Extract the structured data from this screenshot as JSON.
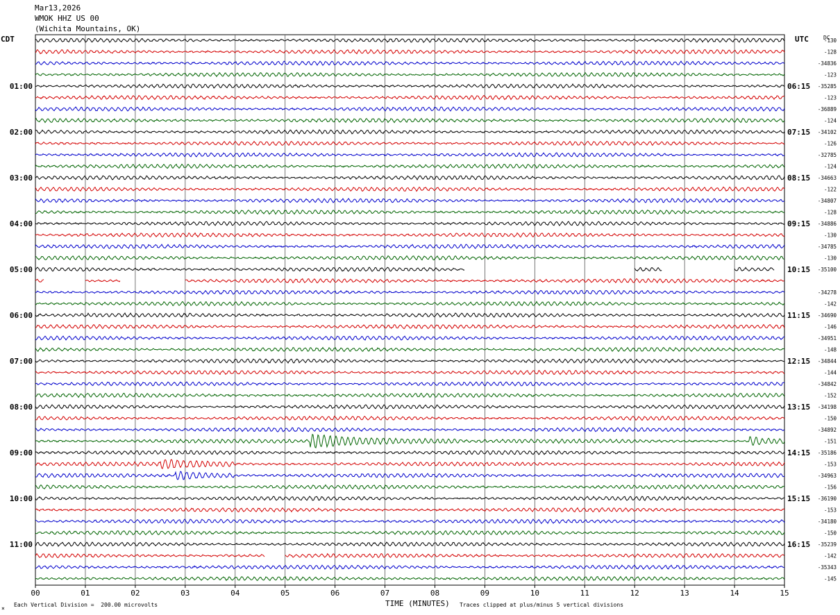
{
  "header": {
    "date": "Mar13,2026",
    "station": "WMOK HHZ US 00",
    "location": "(Wichita Mountains, OK)"
  },
  "tz": {
    "left": "CDT",
    "right": "UTC",
    "corner": "DC"
  },
  "footer": {
    "division": "Each Vertical Division =  200.00 microvolts",
    "xtitle": "TIME (MINUTES)",
    "clip_note": "Traces clipped at plus/minus 5 vertical divisions"
  },
  "colors": {
    "trace_cycle": [
      "#000000",
      "#d40000",
      "#0000cc",
      "#006400"
    ],
    "grid": "#000000"
  },
  "chart_data": {
    "type": "line",
    "subtype": "helicorder",
    "x_ticks": [
      "00",
      "01",
      "02",
      "03",
      "04",
      "05",
      "06",
      "07",
      "08",
      "09",
      "10",
      "11",
      "12",
      "13",
      "14",
      "15"
    ],
    "xlim": [
      0,
      15
    ],
    "row_minutes": 15,
    "row_count": 48,
    "hour_labels_left": [
      "01:00",
      "02:00",
      "03:00",
      "04:00",
      "05:00",
      "06:00",
      "07:00",
      "08:00",
      "09:00",
      "10:00",
      "11:00"
    ],
    "hour_labels_right": [
      "06:15",
      "07:15",
      "08:15",
      "09:15",
      "10:15",
      "11:15",
      "12:15",
      "13:15",
      "14:15",
      "15:15",
      "16:15"
    ],
    "first_labeled_row": 4,
    "dc_offsets": [
      "-130",
      "-128",
      "-34836",
      "-123",
      "-35285",
      "-123",
      "-36889",
      "-124",
      "-34102",
      "-126",
      "-32785",
      "-124",
      "-34663",
      "-122",
      "-34807",
      "-128",
      "-34886",
      "-130",
      "-34785",
      "-130",
      "-35100",
      "",
      "-34278",
      "-142",
      "-34690",
      "-146",
      "-34951",
      "-148",
      "-34844",
      "-144",
      "-34842",
      "-152",
      "-34198",
      "-150",
      "-34892",
      "-151",
      "-35186",
      "-153",
      "-34963",
      "-156",
      "-36190",
      "-153",
      "-34180",
      "-150",
      "-35239",
      "-142",
      "-35343",
      "-145"
    ],
    "gaps": [
      {
        "row": 20,
        "segments": [
          [
            0,
            8.6
          ],
          [
            12.0,
            12.55
          ],
          [
            14.0,
            14.8
          ]
        ]
      },
      {
        "row": 21,
        "segments": [
          [
            0.0,
            0.18
          ],
          [
            1.0,
            1.7
          ],
          [
            3.0,
            15
          ]
        ]
      },
      {
        "row": 45,
        "segments": [
          [
            0,
            4.6
          ],
          [
            5.0,
            15
          ]
        ]
      }
    ],
    "events": [
      {
        "row": 35,
        "start_min": 5.5,
        "end_min": 8.5,
        "amplitude_div": 3.5
      },
      {
        "row": 35,
        "start_min": 14.3,
        "end_min": 15,
        "amplitude_div": 2.5
      },
      {
        "row": 37,
        "start_min": 2.5,
        "end_min": 4.0,
        "amplitude_div": 2
      },
      {
        "row": 38,
        "start_min": 2.8,
        "end_min": 4.0,
        "amplitude_div": 2
      }
    ]
  }
}
